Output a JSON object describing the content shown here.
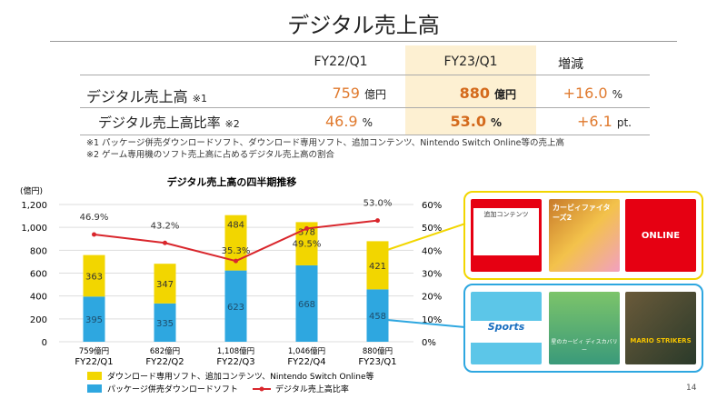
{
  "title": "デジタル売上高",
  "table": {
    "headers": [
      "FY22/Q1",
      "FY23/Q1",
      "増減"
    ],
    "rows": [
      {
        "label": "デジタル売上高",
        "note": "※1",
        "v1": "759",
        "u1": "億円",
        "v2": "880",
        "u2": "億円",
        "v3": "+16.0",
        "u3": "%"
      },
      {
        "label": "デジタル売上高比率",
        "note": "※2",
        "v1": "46.9",
        "u1": "%",
        "v2": "53.0",
        "u2": "%",
        "v3": "+6.1",
        "u3": "pt."
      }
    ],
    "footnotes": [
      "※1 パッケージ併売ダウンロードソフト、ダウンロード専用ソフト、追加コンテンツ、Nintendo Switch Online等の売上高",
      "※2 ゲーム専用機のソフト売上高に占めるデジタル売上高の割合"
    ]
  },
  "chart_data": {
    "type": "bar",
    "title": "デジタル売上高の四半期推移",
    "ylabel": "(億円)",
    "ylim": [
      0,
      1200
    ],
    "yticks": [
      "0",
      "200",
      "400",
      "600",
      "800",
      "1,000",
      "1,200"
    ],
    "y2lim": [
      0,
      60
    ],
    "y2ticks": [
      "0%",
      "10%",
      "20%",
      "30%",
      "40%",
      "50%",
      "60%"
    ],
    "categories": [
      "FY22/Q1",
      "FY22/Q2",
      "FY22/Q3",
      "FY22/Q4",
      "FY23/Q1"
    ],
    "totals": [
      "759億円",
      "682億円",
      "1,108億円",
      "1,046億円",
      "880億円"
    ],
    "series": [
      {
        "name": "パッケージ併売ダウンロードソフト",
        "type": "bar",
        "color": "#2ea7e0",
        "values": [
          395,
          335,
          623,
          668,
          458
        ]
      },
      {
        "name": "ダウンロード専用ソフト、追加コンテンツ、Nintendo Switch Online等",
        "type": "bar",
        "color": "#f2d600",
        "values": [
          363,
          347,
          484,
          378,
          421
        ]
      },
      {
        "name": "デジタル売上高比率",
        "type": "line",
        "axis": "right",
        "color": "#d9262c",
        "values": [
          46.9,
          43.2,
          35.3,
          49.5,
          53.0
        ],
        "labels": [
          "46.9%",
          "43.2%",
          "35.3%",
          "49.5%",
          "53.0%"
        ]
      }
    ],
    "grid": true,
    "legend": "bottom"
  },
  "images": {
    "yellow_group": [
      {
        "label": "追加コンテンツ",
        "color": "#e60012"
      },
      {
        "label": "カービィファイターズ2",
        "color": "#c87a2a"
      },
      {
        "label": "ONLINE",
        "color": "#e60012"
      }
    ],
    "blue_group": [
      {
        "label": "Sports",
        "color": "#5cc6e8"
      },
      {
        "label": "星のカービィ ディスカバリー",
        "color": "#7cc46a"
      },
      {
        "label": "MARIO STRIKERS",
        "color": "#6a5a3a"
      }
    ],
    "yellow_border": "#f2d600",
    "blue_border": "#2ea7e0"
  },
  "page_number": "14"
}
